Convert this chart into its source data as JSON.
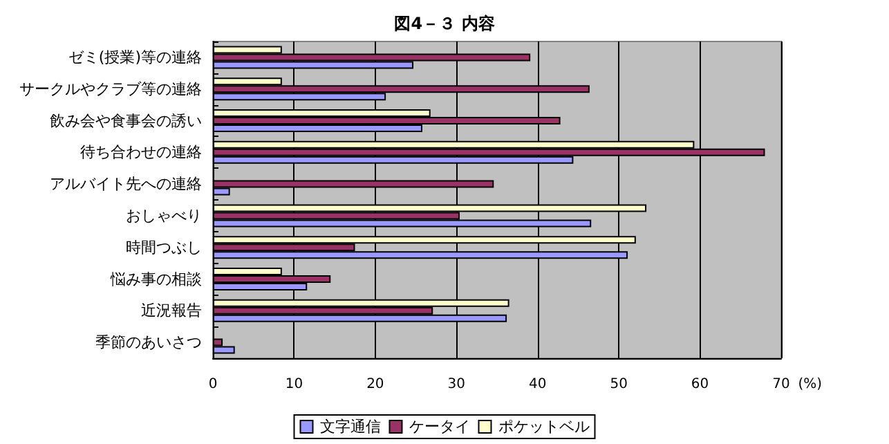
{
  "chart_data": {
    "type": "bar",
    "orientation": "horizontal",
    "title": "図4－３ 内容",
    "xlabel": "(%)",
    "categories": [
      "ゼミ(授業)等の連絡",
      "サークルやクラブ等の連絡",
      "飲み会や食事会の誘い",
      "待ち合わせの連絡",
      "アルバイト先への連絡",
      "おしゃべり",
      "時間つぶし",
      "悩み事の相談",
      "近況報告",
      "季節のあいさつ"
    ],
    "series": [
      {
        "name": "文字通信",
        "color": "#9999ff",
        "values": [
          24.7,
          21.3,
          25.8,
          44.4,
          2.1,
          46.6,
          51.1,
          11.6,
          36.2,
          2.7
        ]
      },
      {
        "name": "ケータイ",
        "color": "#993366",
        "values": [
          39.1,
          46.4,
          42.8,
          68.0,
          34.6,
          30.4,
          17.5,
          14.5,
          27.1,
          1.2
        ]
      },
      {
        "name": "ポケットベル",
        "color": "#ffffcc",
        "values": [
          8.5,
          8.5,
          26.8,
          59.3,
          null,
          53.4,
          52.1,
          8.5,
          36.5,
          null
        ]
      }
    ],
    "xlim": [
      0,
      70
    ],
    "xticks": [
      0,
      10,
      20,
      30,
      40,
      50,
      60,
      70
    ],
    "grid": "x",
    "legend": "bottom"
  }
}
